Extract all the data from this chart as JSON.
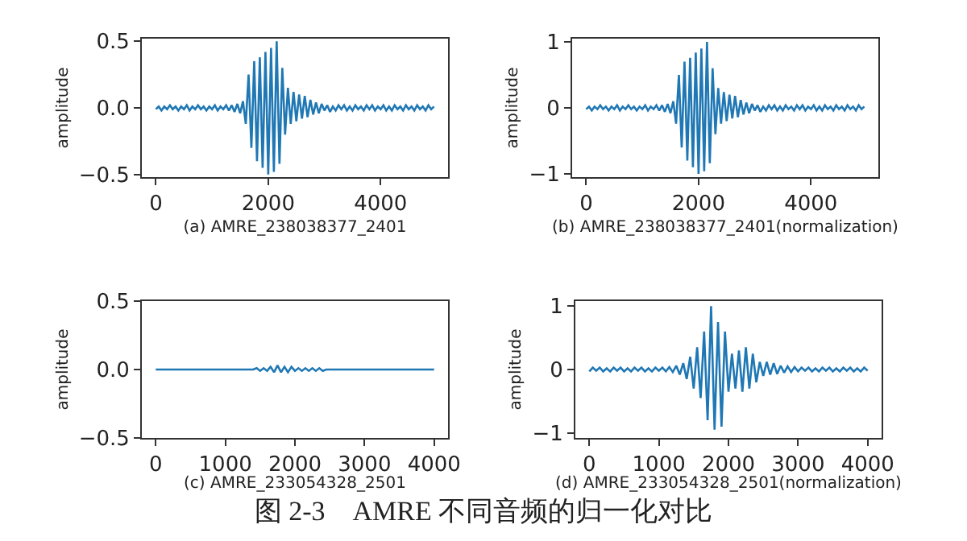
{
  "chart_data": [
    {
      "type": "line",
      "xlabel": "(a) AMRE_238038377_2401",
      "ylabel": "amplitude",
      "grid": false,
      "xlim": [
        -250,
        5200
      ],
      "xticks": [
        0,
        2000,
        4000
      ],
      "ylim": [
        -0.52,
        0.52
      ],
      "yticks": [
        {
          "value": -0.5,
          "label": "−0.5"
        },
        {
          "value": 0,
          "label": "0.0"
        },
        0.5
      ],
      "x": [
        0,
        50,
        100,
        150,
        200,
        250,
        300,
        350,
        400,
        450,
        500,
        550,
        600,
        650,
        700,
        750,
        800,
        850,
        900,
        950,
        1000,
        1050,
        1100,
        1150,
        1200,
        1250,
        1300,
        1350,
        1400,
        1450,
        1500,
        1550,
        1600,
        1650,
        1700,
        1750,
        1800,
        1850,
        1900,
        1950,
        2000,
        2050,
        2100,
        2150,
        2200,
        2250,
        2300,
        2350,
        2400,
        2450,
        2500,
        2550,
        2600,
        2650,
        2700,
        2750,
        2800,
        2850,
        2900,
        2950,
        3000,
        3050,
        3100,
        3150,
        3200,
        3250,
        3300,
        3350,
        3400,
        3450,
        3500,
        3550,
        3600,
        3650,
        3700,
        3750,
        3800,
        3850,
        3900,
        3950,
        4000,
        4050,
        4100,
        4150,
        4200,
        4250,
        4300,
        4350,
        4400,
        4450,
        4500,
        4550,
        4600,
        4650,
        4700,
        4750,
        4800,
        4850,
        4900,
        4950
      ],
      "series": [
        {
          "color": "#1f77b4",
          "values": [
            -0.01,
            0.01,
            -0.02,
            0.01,
            -0.01,
            0.02,
            -0.01,
            0.01,
            -0.02,
            0.01,
            -0.01,
            0.02,
            -0.02,
            0.01,
            -0.01,
            0.02,
            -0.01,
            0.01,
            -0.02,
            0.01,
            -0.01,
            0.02,
            -0.02,
            0.01,
            -0.01,
            0.02,
            -0.02,
            0.02,
            -0.03,
            0.03,
            -0.04,
            0.05,
            -0.12,
            0.25,
            -0.3,
            0.35,
            -0.4,
            0.38,
            -0.45,
            0.42,
            -0.5,
            0.45,
            -0.48,
            0.5,
            -0.42,
            0.3,
            -0.2,
            0.15,
            -0.12,
            0.12,
            -0.1,
            0.1,
            -0.08,
            0.09,
            -0.07,
            0.06,
            -0.05,
            0.04,
            -0.04,
            0.03,
            -0.02,
            0.02,
            -0.03,
            0.01,
            -0.02,
            0.02,
            -0.01,
            0.02,
            -0.02,
            0.01,
            -0.02,
            0.02,
            -0.01,
            0.01,
            -0.02,
            0.02,
            -0.01,
            0.02,
            -0.02,
            0.01,
            -0.01,
            0.02,
            -0.02,
            0.01,
            -0.02,
            0.02,
            -0.01,
            0.01,
            -0.02,
            0.02,
            -0.01,
            0.01,
            -0.02,
            0.02,
            -0.01,
            0.01,
            -0.02,
            0.02,
            -0.01,
            0.01
          ]
        }
      ]
    },
    {
      "type": "line",
      "xlabel": "(b) AMRE_238038377_2401(normalization)",
      "ylabel": "amplitude",
      "grid": false,
      "xlim": [
        -250,
        5200
      ],
      "xticks": [
        0,
        2000,
        4000
      ],
      "ylim": [
        -1.05,
        1.05
      ],
      "yticks": [
        {
          "value": -1,
          "label": "−1"
        },
        0,
        1
      ],
      "x": [
        0,
        50,
        100,
        150,
        200,
        250,
        300,
        350,
        400,
        450,
        500,
        550,
        600,
        650,
        700,
        750,
        800,
        850,
        900,
        950,
        1000,
        1050,
        1100,
        1150,
        1200,
        1250,
        1300,
        1350,
        1400,
        1450,
        1500,
        1550,
        1600,
        1650,
        1700,
        1750,
        1800,
        1850,
        1900,
        1950,
        2000,
        2050,
        2100,
        2150,
        2200,
        2250,
        2300,
        2350,
        2400,
        2450,
        2500,
        2550,
        2600,
        2650,
        2700,
        2750,
        2800,
        2850,
        2900,
        2950,
        3000,
        3050,
        3100,
        3150,
        3200,
        3250,
        3300,
        3350,
        3400,
        3450,
        3500,
        3550,
        3600,
        3650,
        3700,
        3750,
        3800,
        3850,
        3900,
        3950,
        4000,
        4050,
        4100,
        4150,
        4200,
        4250,
        4300,
        4350,
        4400,
        4450,
        4500,
        4550,
        4600,
        4650,
        4700,
        4750,
        4800,
        4850,
        4900,
        4950
      ],
      "series": [
        {
          "color": "#1f77b4",
          "values": [
            -0.02,
            0.02,
            -0.04,
            0.02,
            -0.02,
            0.04,
            -0.02,
            0.02,
            -0.04,
            0.02,
            -0.02,
            0.04,
            -0.04,
            0.02,
            -0.02,
            0.04,
            -0.02,
            0.02,
            -0.04,
            0.02,
            -0.02,
            0.04,
            -0.04,
            0.02,
            -0.02,
            0.04,
            -0.04,
            0.04,
            -0.06,
            0.06,
            -0.08,
            0.1,
            -0.24,
            0.5,
            -0.6,
            0.7,
            -0.8,
            0.76,
            -0.9,
            0.84,
            -1,
            0.9,
            -0.96,
            1,
            -0.84,
            0.6,
            -0.4,
            0.3,
            -0.24,
            0.24,
            -0.2,
            0.2,
            -0.16,
            0.18,
            -0.14,
            0.12,
            -0.1,
            0.08,
            -0.08,
            0.06,
            -0.04,
            0.04,
            -0.06,
            0.02,
            -0.04,
            0.04,
            -0.02,
            0.04,
            -0.04,
            0.02,
            -0.04,
            0.04,
            -0.02,
            0.02,
            -0.04,
            0.04,
            -0.02,
            0.04,
            -0.04,
            0.02,
            -0.02,
            0.04,
            -0.04,
            0.02,
            -0.04,
            0.04,
            -0.02,
            0.02,
            -0.04,
            0.04,
            -0.02,
            0.02,
            -0.04,
            0.04,
            -0.02,
            0.02,
            -0.04,
            0.04,
            -0.02,
            0.02
          ]
        }
      ]
    },
    {
      "type": "line",
      "xlabel": "(c) AMRE_233054328_2501",
      "ylabel": "amplitude",
      "grid": false,
      "xlim": [
        -200,
        4200
      ],
      "xticks": [
        0,
        1000,
        2000,
        3000,
        4000
      ],
      "ylim": [
        -0.5,
        0.5
      ],
      "yticks": [
        {
          "value": -0.5,
          "label": "−0.5"
        },
        {
          "value": 0,
          "label": "0.0"
        },
        0.5
      ],
      "x": [
        0,
        50,
        100,
        150,
        200,
        250,
        300,
        350,
        400,
        450,
        500,
        550,
        600,
        650,
        700,
        750,
        800,
        850,
        900,
        950,
        1000,
        1050,
        1100,
        1150,
        1200,
        1250,
        1300,
        1350,
        1400,
        1450,
        1500,
        1550,
        1600,
        1650,
        1700,
        1750,
        1800,
        1850,
        1900,
        1950,
        2000,
        2050,
        2100,
        2150,
        2200,
        2250,
        2300,
        2350,
        2400,
        2450,
        2500,
        2550,
        2600,
        2650,
        2700,
        2750,
        2800,
        2850,
        2900,
        2950,
        3000,
        3050,
        3100,
        3150,
        3200,
        3250,
        3300,
        3350,
        3400,
        3450,
        3500,
        3550,
        3600,
        3650,
        3700,
        3750,
        3800,
        3850,
        3900,
        3950,
        4000
      ],
      "series": [
        {
          "color": "#1f77b4",
          "values": [
            0,
            0,
            0,
            0,
            0,
            0,
            0,
            0,
            0,
            0,
            0,
            0,
            0,
            0,
            0,
            0,
            0,
            0,
            0,
            0,
            0,
            0,
            0,
            0,
            0,
            0,
            0,
            0,
            0,
            0.01,
            -0.01,
            0.01,
            -0.01,
            0.02,
            -0.02,
            0.03,
            -0.02,
            0.02,
            -0.02,
            0.02,
            -0.01,
            0.01,
            -0.01,
            0.01,
            -0.01,
            0.01,
            -0.01,
            0.01,
            -0.01,
            0,
            0,
            0,
            0,
            0,
            0,
            0,
            0,
            0,
            0,
            0,
            0,
            0,
            0,
            0,
            0,
            0,
            0,
            0,
            0,
            0,
            0,
            0,
            0,
            0,
            0,
            0,
            0,
            0,
            0,
            0,
            0
          ]
        }
      ]
    },
    {
      "type": "line",
      "xlabel": "(d) AMRE_233054328_2501(normalization)",
      "ylabel": "amplitude",
      "grid": false,
      "xlim": [
        -200,
        4200
      ],
      "xticks": [
        0,
        1000,
        2000,
        3000,
        4000
      ],
      "ylim": [
        -1.08,
        1.08
      ],
      "yticks": [
        {
          "value": -1,
          "label": "−1"
        },
        0,
        1
      ],
      "annotations": [
        "图 2-3　AMRE 不同音频的归一化对比"
      ],
      "x": [
        0,
        50,
        100,
        150,
        200,
        250,
        300,
        350,
        400,
        450,
        500,
        550,
        600,
        650,
        700,
        750,
        800,
        850,
        900,
        950,
        1000,
        1050,
        1100,
        1150,
        1200,
        1250,
        1300,
        1350,
        1400,
        1450,
        1500,
        1550,
        1600,
        1650,
        1700,
        1750,
        1800,
        1850,
        1900,
        1950,
        2000,
        2050,
        2100,
        2150,
        2200,
        2250,
        2300,
        2350,
        2400,
        2450,
        2500,
        2550,
        2600,
        2650,
        2700,
        2750,
        2800,
        2850,
        2900,
        2950,
        3000,
        3050,
        3100,
        3150,
        3200,
        3250,
        3300,
        3350,
        3400,
        3450,
        3500,
        3550,
        3600,
        3650,
        3700,
        3750,
        3800,
        3850,
        3900,
        3950,
        4000
      ],
      "series": [
        {
          "color": "#1f77b4",
          "values": [
            -0.03,
            0.03,
            -0.02,
            0.03,
            -0.03,
            0.02,
            -0.03,
            0.03,
            -0.02,
            0.03,
            -0.03,
            0.02,
            -0.03,
            0.03,
            -0.02,
            0.03,
            -0.03,
            0.02,
            -0.03,
            0.03,
            -0.02,
            0.03,
            -0.03,
            0.04,
            -0.04,
            0.06,
            -0.08,
            0.1,
            -0.15,
            0.2,
            -0.3,
            0.35,
            -0.45,
            0.6,
            -0.8,
            1,
            -0.95,
            0.75,
            -0.9,
            0.6,
            -0.35,
            0.25,
            -0.3,
            0.3,
            -0.35,
            0.35,
            -0.3,
            0.25,
            -0.2,
            0.12,
            -0.1,
            0.12,
            -0.08,
            0.1,
            -0.07,
            0.06,
            -0.05,
            0.05,
            -0.04,
            0.04,
            -0.03,
            0.03,
            -0.02,
            0.03,
            -0.03,
            0.02,
            -0.03,
            0.03,
            -0.02,
            0.03,
            -0.03,
            0.02,
            -0.03,
            0.03,
            -0.02,
            0.03,
            -0.03,
            0.02,
            -0.03,
            0.03,
            -0.02
          ]
        }
      ]
    }
  ]
}
